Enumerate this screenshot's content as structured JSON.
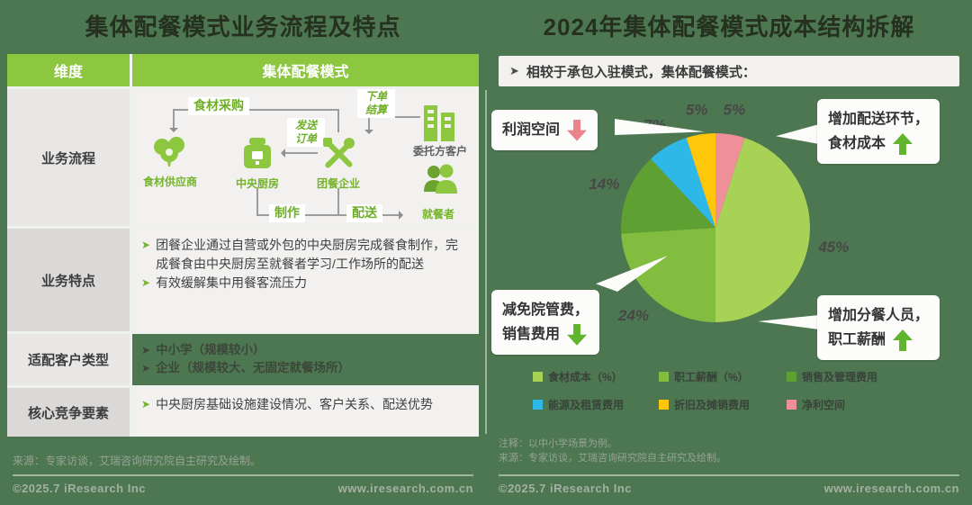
{
  "ui": {
    "bullet": "➤"
  },
  "footer": {
    "copyright": "©2025.7 iResearch Inc",
    "website": "www.iresearch.com.cn"
  },
  "left_panel": {
    "title": "集体配餐模式业务流程及特点",
    "table": {
      "col1_header": "维度",
      "col2_header": "集体配餐模式",
      "row_labels": [
        "业务流程",
        "业务特点",
        "适配客户类型",
        "核心竞争要素"
      ]
    },
    "flow": {
      "edge_labels": {
        "procure": "食材采购",
        "order": "下单结算",
        "send": "发送订单",
        "make": "制作",
        "deliver": "配送"
      },
      "node_labels": {
        "supplier": "食材供应商",
        "kitchen": "中央厨房",
        "caterer": "团餐企业",
        "client": "委托方客户",
        "diner": "就餐者"
      }
    },
    "features": [
      "团餐企业通过自营或外包的中央厨房完成餐食制作，完成餐食由中央厨房至就餐者学习/工作场所的配送",
      "有效缓解集中用餐客流压力"
    ],
    "customers": [
      "中小学（规模较小）",
      "企业（规模较大、无固定就餐场所）"
    ],
    "competitive": [
      "中央厨房基础设施建设情况、客户关系、配送优势"
    ],
    "source": "来源：专家访谈，艾瑞咨询研究院自主研究及绘制。"
  },
  "right_panel": {
    "title": "2024年集体配餐模式成本结构拆解",
    "subtitle": "相较于承包入驻模式，集体配餐模式：",
    "callouts": [
      {
        "line1": "利润空间",
        "line2": "",
        "direction": "down",
        "arrow_color": "#ec828b"
      },
      {
        "line1": "增加配送环节，",
        "line2": "食材成本",
        "direction": "up",
        "arrow_color": "#61b42e"
      },
      {
        "line1": "减免院管费，",
        "line2": "销售费用",
        "direction": "down",
        "arrow_color": "#61b42e"
      },
      {
        "line1": "增加分餐人员，",
        "line2": "职工薪酬",
        "direction": "up",
        "arrow_color": "#61b42e"
      }
    ],
    "notes": [
      "注释：以中小学场景为例。",
      "来源：专家访谈，艾瑞咨询研究院自主研究及绘制。"
    ]
  },
  "chart_data": {
    "type": "pie",
    "title": "2024年集体配餐模式成本结构拆解",
    "start_angle_deg": 18,
    "direction": "clockwise",
    "legend_position": "bottom",
    "slices": [
      {
        "label": "食材成本（%）",
        "value": 45,
        "color": "#a8d255"
      },
      {
        "label": "职工薪酬（%）",
        "value": 24,
        "color": "#83bd3f"
      },
      {
        "label": "销售及管理费用",
        "value": 14,
        "color": "#5fa033"
      },
      {
        "label": "能源及租赁费用",
        "value": 7,
        "color": "#2db8e8"
      },
      {
        "label": "折旧及摊销费用",
        "value": 5,
        "color": "#ffc60a"
      },
      {
        "label": "净利空间",
        "value": 5,
        "color": "#ef8f99"
      }
    ]
  }
}
